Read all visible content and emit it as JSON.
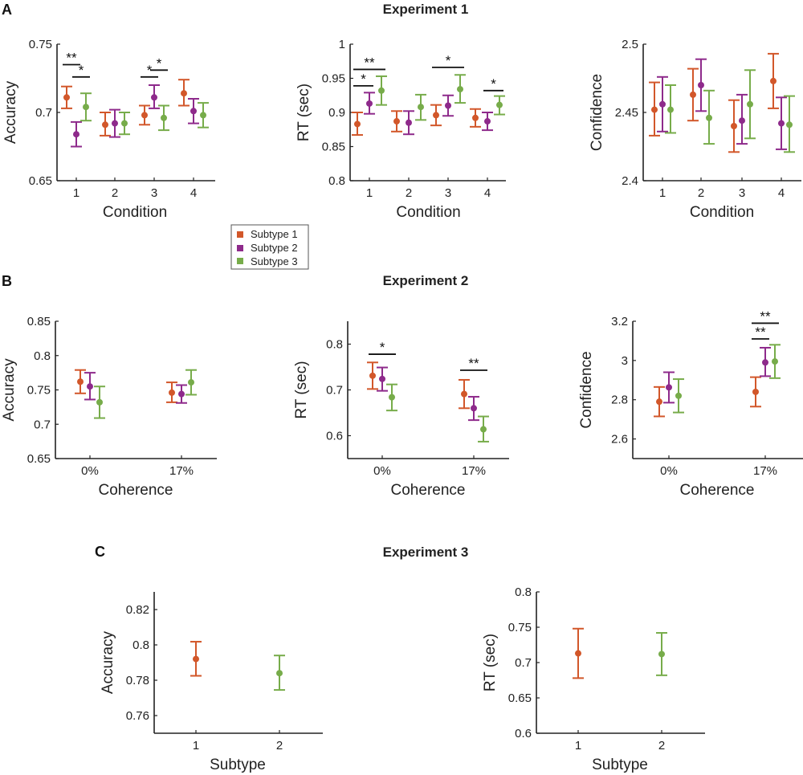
{
  "legend": {
    "items": [
      {
        "label": "Subtype 1",
        "color": "#D2572A"
      },
      {
        "label": "Subtype 2",
        "color": "#8E2A8B"
      },
      {
        "label": "Subtype 3",
        "color": "#77AC4A"
      }
    ]
  },
  "sections": [
    {
      "letter": "A",
      "title": "Experiment 1"
    },
    {
      "letter": "B",
      "title": "Experiment 2"
    },
    {
      "letter": "C",
      "title": "Experiment 3"
    }
  ],
  "chart_data": [
    {
      "id": "exp1-accuracy",
      "type": "scatter",
      "section": "A",
      "title": "",
      "xlabel": "Condition",
      "ylabel": "Accuracy",
      "categories": [
        "1",
        "2",
        "3",
        "4"
      ],
      "ylim": [
        0.65,
        0.75
      ],
      "yticks": [
        0.65,
        0.7,
        0.75
      ],
      "ytick_labels": [
        "0.65",
        "0.7",
        "0.75"
      ],
      "series": [
        {
          "name": "Subtype 1",
          "values": [
            0.711,
            0.691,
            0.698,
            0.714
          ],
          "lower": [
            0.703,
            0.683,
            0.691,
            0.705
          ],
          "upper": [
            0.719,
            0.7,
            0.705,
            0.724
          ]
        },
        {
          "name": "Subtype 2",
          "values": [
            0.684,
            0.692,
            0.711,
            0.701
          ],
          "lower": [
            0.675,
            0.682,
            0.703,
            0.692
          ],
          "upper": [
            0.693,
            0.702,
            0.72,
            0.71
          ]
        },
        {
          "name": "Subtype 3",
          "values": [
            0.704,
            0.692,
            0.696,
            0.698
          ],
          "lower": [
            0.694,
            0.684,
            0.687,
            0.689
          ],
          "upper": [
            0.714,
            0.7,
            0.705,
            0.707
          ]
        }
      ],
      "significance": [
        {
          "category": 0,
          "from": 0,
          "to": 1,
          "label": "**",
          "y": 0.735
        },
        {
          "category": 0,
          "from": 1,
          "to": 2,
          "label": "*",
          "y": 0.726
        },
        {
          "category": 2,
          "from": 0,
          "to": 1,
          "label": "*",
          "y": 0.726
        },
        {
          "category": 2,
          "from": 1,
          "to": 2,
          "label": "*",
          "y": 0.731
        }
      ]
    },
    {
      "id": "exp1-rt",
      "type": "scatter",
      "section": "A",
      "title": "",
      "xlabel": "Condition",
      "ylabel": "RT (sec)",
      "categories": [
        "1",
        "2",
        "3",
        "4"
      ],
      "ylim": [
        0.8,
        1.0
      ],
      "yticks": [
        0.8,
        0.85,
        0.9,
        0.95,
        1.0
      ],
      "ytick_labels": [
        "0.8",
        "0.85",
        "0.9",
        "0.95",
        "1"
      ],
      "series": [
        {
          "name": "Subtype 1",
          "values": [
            0.883,
            0.887,
            0.896,
            0.892
          ],
          "lower": [
            0.867,
            0.872,
            0.881,
            0.879
          ],
          "upper": [
            0.9,
            0.902,
            0.911,
            0.905
          ]
        },
        {
          "name": "Subtype 2",
          "values": [
            0.913,
            0.885,
            0.91,
            0.887
          ],
          "lower": [
            0.898,
            0.868,
            0.895,
            0.874
          ],
          "upper": [
            0.929,
            0.902,
            0.925,
            0.9
          ]
        },
        {
          "name": "Subtype 3",
          "values": [
            0.932,
            0.908,
            0.934,
            0.911
          ],
          "lower": [
            0.911,
            0.889,
            0.914,
            0.897
          ],
          "upper": [
            0.953,
            0.926,
            0.955,
            0.924
          ]
        }
      ],
      "significance": [
        {
          "category": 0,
          "from": 0,
          "to": 2,
          "label": "**",
          "y": 0.963
        },
        {
          "category": 0,
          "from": 0,
          "to": 1,
          "label": "*",
          "y": 0.939
        },
        {
          "category": 2,
          "from": 0,
          "to": 2,
          "label": "*",
          "y": 0.966
        },
        {
          "category": 3,
          "from": 1,
          "to": 2,
          "label": "*",
          "y": 0.932
        }
      ]
    },
    {
      "id": "exp1-confidence",
      "type": "scatter",
      "section": "A",
      "title": "",
      "xlabel": "Condition",
      "ylabel": "Confidence",
      "categories": [
        "1",
        "2",
        "3",
        "4"
      ],
      "ylim": [
        2.4,
        2.5
      ],
      "yticks": [
        2.4,
        2.45,
        2.5
      ],
      "ytick_labels": [
        "2.4",
        "2.45",
        "2.5"
      ],
      "series": [
        {
          "name": "Subtype 1",
          "values": [
            2.452,
            2.463,
            2.44,
            2.473
          ],
          "lower": [
            2.433,
            2.444,
            2.421,
            2.453
          ],
          "upper": [
            2.472,
            2.482,
            2.459,
            2.493
          ]
        },
        {
          "name": "Subtype 2",
          "values": [
            2.456,
            2.47,
            2.444,
            2.442
          ],
          "lower": [
            2.436,
            2.451,
            2.427,
            2.423
          ],
          "upper": [
            2.476,
            2.489,
            2.463,
            2.461
          ]
        },
        {
          "name": "Subtype 3",
          "values": [
            2.452,
            2.446,
            2.456,
            2.441
          ],
          "lower": [
            2.435,
            2.427,
            2.431,
            2.421
          ],
          "upper": [
            2.47,
            2.466,
            2.481,
            2.462
          ]
        }
      ],
      "significance": []
    },
    {
      "id": "exp2-accuracy",
      "type": "scatter",
      "section": "B",
      "title": "",
      "xlabel": "Coherence",
      "ylabel": "Accuracy",
      "categories": [
        "0%",
        "17%"
      ],
      "ylim": [
        0.65,
        0.85
      ],
      "yticks": [
        0.65,
        0.7,
        0.75,
        0.8,
        0.85
      ],
      "ytick_labels": [
        "0.65",
        "0.7",
        "0.75",
        "0.8",
        "0.85"
      ],
      "series": [
        {
          "name": "Subtype 1",
          "values": [
            0.762,
            0.746
          ],
          "lower": [
            0.745,
            0.732
          ],
          "upper": [
            0.779,
            0.761
          ]
        },
        {
          "name": "Subtype 2",
          "values": [
            0.755,
            0.744
          ],
          "lower": [
            0.736,
            0.731
          ],
          "upper": [
            0.775,
            0.757
          ]
        },
        {
          "name": "Subtype 3",
          "values": [
            0.732,
            0.761
          ],
          "lower": [
            0.709,
            0.743
          ],
          "upper": [
            0.755,
            0.779
          ]
        }
      ],
      "significance": []
    },
    {
      "id": "exp2-rt",
      "type": "scatter",
      "section": "B",
      "title": "",
      "xlabel": "Coherence",
      "ylabel": "RT (sec)",
      "categories": [
        "0%",
        "17%"
      ],
      "ylim": [
        0.55,
        0.85
      ],
      "yticks": [
        0.6,
        0.7,
        0.8
      ],
      "ytick_labels": [
        "0.6",
        "0.7",
        "0.8"
      ],
      "series": [
        {
          "name": "Subtype 1",
          "values": [
            0.731,
            0.691
          ],
          "lower": [
            0.702,
            0.66
          ],
          "upper": [
            0.76,
            0.722
          ]
        },
        {
          "name": "Subtype 2",
          "values": [
            0.724,
            0.66
          ],
          "lower": [
            0.698,
            0.634
          ],
          "upper": [
            0.749,
            0.685
          ]
        },
        {
          "name": "Subtype 3",
          "values": [
            0.684,
            0.614
          ],
          "lower": [
            0.655,
            0.587
          ],
          "upper": [
            0.712,
            0.642
          ]
        }
      ],
      "significance": [
        {
          "category": 0,
          "from": 0,
          "to": 2,
          "label": "*",
          "y": 0.778
        },
        {
          "category": 1,
          "from": 0,
          "to": 2,
          "label": "**",
          "y": 0.743
        }
      ]
    },
    {
      "id": "exp2-confidence",
      "type": "scatter",
      "section": "B",
      "title": "",
      "xlabel": "Coherence",
      "ylabel": "Confidence",
      "categories": [
        "0%",
        "17%"
      ],
      "ylim": [
        2.5,
        3.2
      ],
      "yticks": [
        2.6,
        2.8,
        3.0,
        3.2
      ],
      "ytick_labels": [
        "2.6",
        "2.8",
        "3",
        "3.2"
      ],
      "series": [
        {
          "name": "Subtype 1",
          "values": [
            2.79,
            2.84
          ],
          "lower": [
            2.715,
            2.765
          ],
          "upper": [
            2.865,
            2.915
          ]
        },
        {
          "name": "Subtype 2",
          "values": [
            2.863,
            2.99
          ],
          "lower": [
            2.785,
            2.92
          ],
          "upper": [
            2.94,
            3.065
          ]
        },
        {
          "name": "Subtype 3",
          "values": [
            2.82,
            2.995
          ],
          "lower": [
            2.735,
            2.91
          ],
          "upper": [
            2.905,
            3.08
          ]
        }
      ],
      "significance": [
        {
          "category": 1,
          "from": 0,
          "to": 2,
          "label": "**",
          "y": 3.19
        },
        {
          "category": 1,
          "from": 0,
          "to": 1,
          "label": "**",
          "y": 3.11
        }
      ]
    },
    {
      "id": "exp3-accuracy",
      "type": "scatter",
      "section": "C",
      "title": "",
      "xlabel": "Subtype",
      "ylabel": "Accuracy",
      "categories": [
        "1",
        "2"
      ],
      "ylim": [
        0.75,
        0.83
      ],
      "yticks": [
        0.76,
        0.78,
        0.8,
        0.82
      ],
      "ytick_labels": [
        "0.76",
        "0.78",
        "0.8",
        "0.82"
      ],
      "series": [
        {
          "name": "Subtype 1",
          "color_index": 0,
          "category": 0,
          "values": [
            0.792
          ],
          "lower": [
            0.7825
          ],
          "upper": [
            0.8018
          ]
        },
        {
          "name": "Subtype 3",
          "color_index": 2,
          "category": 1,
          "values": [
            0.784
          ],
          "lower": [
            0.7745
          ],
          "upper": [
            0.794
          ]
        }
      ],
      "significance": []
    },
    {
      "id": "exp3-rt",
      "type": "scatter",
      "section": "C",
      "title": "",
      "xlabel": "Subtype",
      "ylabel": "RT (sec)",
      "categories": [
        "1",
        "2"
      ],
      "ylim": [
        0.6,
        0.8
      ],
      "yticks": [
        0.6,
        0.65,
        0.7,
        0.75,
        0.8
      ],
      "ytick_labels": [
        "0.6",
        "0.65",
        "0.7",
        "0.75",
        "0.8"
      ],
      "series": [
        {
          "name": "Subtype 1",
          "color_index": 0,
          "category": 0,
          "values": [
            0.713
          ],
          "lower": [
            0.678
          ],
          "upper": [
            0.748
          ]
        },
        {
          "name": "Subtype 3",
          "color_index": 2,
          "category": 1,
          "values": [
            0.712
          ],
          "lower": [
            0.682
          ],
          "upper": [
            0.742
          ]
        }
      ],
      "significance": []
    }
  ]
}
